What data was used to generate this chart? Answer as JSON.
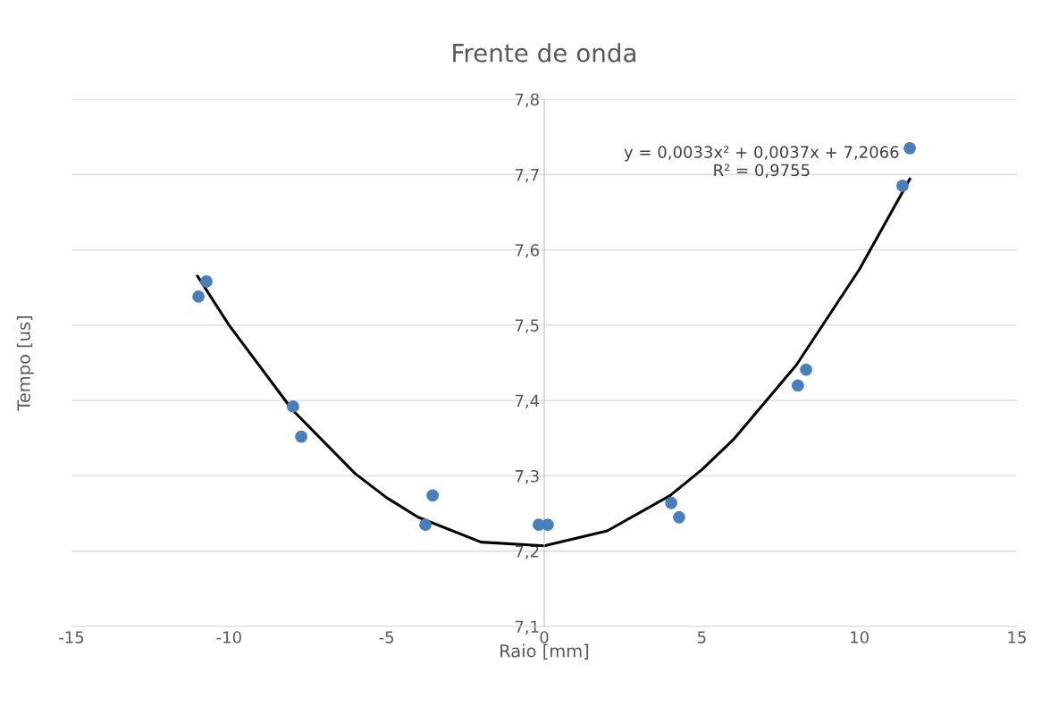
{
  "chart_data": {
    "type": "scatter",
    "title": "Frente de onda",
    "xlabel": "Raio [mm]",
    "ylabel": "Tempo [us]",
    "xlim": [
      -15,
      15
    ],
    "xticks": [
      -15,
      -10,
      -5,
      0,
      5,
      10,
      15
    ],
    "ylim": [
      7.1,
      7.8
    ],
    "yticks": [
      {
        "value": 7.1,
        "label": "7,1"
      },
      {
        "value": 7.2,
        "label": "7,2"
      },
      {
        "value": 7.3,
        "label": "7,3"
      },
      {
        "value": 7.4,
        "label": "7,4"
      },
      {
        "value": 7.5,
        "label": "7,5"
      },
      {
        "value": 7.6,
        "label": "7,6"
      },
      {
        "value": 7.7,
        "label": "7,7"
      },
      {
        "value": 7.8,
        "label": "7,8"
      }
    ],
    "grid": "y",
    "series": [
      {
        "marker": "circle",
        "color": "#4a7ebb",
        "x": [
          -10.97,
          -10.72,
          -7.97,
          -7.71,
          -3.54,
          -3.77,
          -0.17,
          0.11,
          4.03,
          4.28,
          8.05,
          8.31,
          11.37,
          11.6
        ],
        "values": [
          7.538,
          7.558,
          7.392,
          7.352,
          7.274,
          7.235,
          7.235,
          7.235,
          7.264,
          7.245,
          7.42,
          7.441,
          7.685,
          7.735
        ]
      },
      {
        "type": "line",
        "color": "#000000",
        "x": [
          -11,
          -10,
          -8,
          -6,
          -5,
          -4,
          -2,
          0,
          2,
          4,
          5,
          6,
          8,
          10,
          11.6
        ],
        "values": [
          7.565,
          7.5,
          7.388,
          7.303,
          7.271,
          7.245,
          7.212,
          7.207,
          7.227,
          7.274,
          7.308,
          7.348,
          7.447,
          7.574,
          7.694
        ]
      }
    ],
    "annotations": [
      "y = 0,0033x² + 0,0037x + 7,2066\nR² = 0,9755"
    ]
  }
}
